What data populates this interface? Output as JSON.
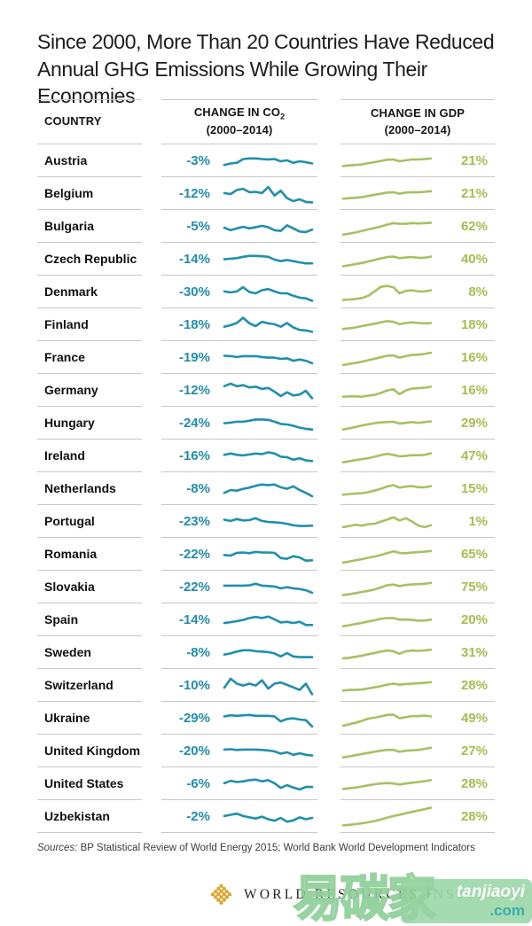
{
  "title": {
    "line1": "Since 2000, More Than 20 Countries Have Reduced",
    "line2": "Annual GHG Emissions While Growing Their Economies"
  },
  "colors": {
    "co2": "#1f8fad",
    "gdp": "#a6c161",
    "gdp_text": "#a3bf4e",
    "rule": "#c7c7c7",
    "title": "#1c1c1c",
    "logo_gold": "#e0a32a"
  },
  "header": {
    "country": "COUNTRY",
    "co2_label": "CHANGE IN CO",
    "co2_sub": "2",
    "co2_period": "(2000–2014)",
    "gdp_label": "CHANGE IN GDP",
    "gdp_period": "(2000–2014)"
  },
  "chart_data": {
    "type": "table",
    "title": "Since 2000, More Than 20 Countries Have Reduced Annual GHG Emissions While Growing Their Economies",
    "columns": [
      "COUNTRY",
      "CHANGE IN CO2 (2000–2014)",
      "CHANGE IN GDP (2000–2014)"
    ],
    "sparkline_x_span": [
      2000,
      2014
    ],
    "note": "Trend arrays are sparkline shapes normalized 0–1 (15 yearly points, 2000–2014)",
    "rows": [
      {
        "country": "Austria",
        "co2_change_pct": -3,
        "co2_label": "-3%",
        "gdp_change_pct": 21,
        "gdp_label": "21%",
        "co2_trend": [
          0.3,
          0.38,
          0.42,
          0.62,
          0.65,
          0.65,
          0.62,
          0.6,
          0.62,
          0.5,
          0.55,
          0.42,
          0.5,
          0.45,
          0.38
        ],
        "gdp_trend": [
          0.25,
          0.28,
          0.3,
          0.33,
          0.4,
          0.45,
          0.52,
          0.58,
          0.6,
          0.5,
          0.55,
          0.6,
          0.6,
          0.62,
          0.65
        ]
      },
      {
        "country": "Belgium",
        "co2_change_pct": -12,
        "co2_label": "-12%",
        "gdp_change_pct": 21,
        "gdp_label": "21%",
        "co2_trend": [
          0.55,
          0.5,
          0.72,
          0.78,
          0.6,
          0.62,
          0.55,
          0.88,
          0.42,
          0.68,
          0.28,
          0.12,
          0.22,
          0.08,
          0.05
        ],
        "gdp_trend": [
          0.25,
          0.28,
          0.3,
          0.34,
          0.4,
          0.46,
          0.52,
          0.58,
          0.6,
          0.52,
          0.58,
          0.6,
          0.6,
          0.62,
          0.65
        ]
      },
      {
        "country": "Bulgaria",
        "co2_change_pct": -5,
        "co2_label": "-5%",
        "gdp_change_pct": 62,
        "gdp_label": "62%",
        "co2_trend": [
          0.45,
          0.32,
          0.42,
          0.5,
          0.42,
          0.48,
          0.55,
          0.48,
          0.32,
          0.28,
          0.58,
          0.42,
          0.25,
          0.22,
          0.35
        ],
        "gdp_trend": [
          0.08,
          0.14,
          0.2,
          0.28,
          0.36,
          0.44,
          0.52,
          0.62,
          0.7,
          0.66,
          0.66,
          0.7,
          0.68,
          0.7,
          0.72
        ]
      },
      {
        "country": "Czech Republic",
        "co2_change_pct": -14,
        "co2_label": "-14%",
        "gdp_change_pct": 40,
        "gdp_label": "40%",
        "co2_trend": [
          0.52,
          0.55,
          0.58,
          0.65,
          0.7,
          0.7,
          0.68,
          0.65,
          0.5,
          0.42,
          0.48,
          0.42,
          0.35,
          0.3,
          0.3
        ],
        "gdp_trend": [
          0.15,
          0.2,
          0.26,
          0.32,
          0.4,
          0.48,
          0.56,
          0.64,
          0.66,
          0.58,
          0.62,
          0.64,
          0.6,
          0.6,
          0.66
        ]
      },
      {
        "country": "Denmark",
        "co2_change_pct": -30,
        "co2_label": "-30%",
        "gdp_change_pct": 8,
        "gdp_label": "8%",
        "co2_trend": [
          0.55,
          0.5,
          0.55,
          0.78,
          0.52,
          0.45,
          0.62,
          0.68,
          0.55,
          0.45,
          0.45,
          0.32,
          0.22,
          0.18,
          0.05
        ],
        "gdp_trend": [
          0.1,
          0.12,
          0.15,
          0.2,
          0.32,
          0.55,
          0.8,
          0.85,
          0.78,
          0.45,
          0.58,
          0.62,
          0.55,
          0.55,
          0.62
        ]
      },
      {
        "country": "Finland",
        "co2_change_pct": -18,
        "co2_label": "-18%",
        "gdp_change_pct": 18,
        "gdp_label": "18%",
        "co2_trend": [
          0.42,
          0.5,
          0.62,
          0.9,
          0.6,
          0.45,
          0.68,
          0.6,
          0.55,
          0.42,
          0.62,
          0.38,
          0.25,
          0.22,
          0.15
        ],
        "gdp_trend": [
          0.3,
          0.34,
          0.38,
          0.45,
          0.52,
          0.58,
          0.65,
          0.72,
          0.68,
          0.55,
          0.62,
          0.65,
          0.62,
          0.6,
          0.62
        ]
      },
      {
        "country": "France",
        "co2_change_pct": -19,
        "co2_label": "-19%",
        "gdp_change_pct": 16,
        "gdp_label": "16%",
        "co2_trend": [
          0.62,
          0.6,
          0.55,
          0.6,
          0.6,
          0.6,
          0.55,
          0.52,
          0.52,
          0.45,
          0.48,
          0.35,
          0.42,
          0.35,
          0.22
        ],
        "gdp_trend": [
          0.12,
          0.18,
          0.24,
          0.3,
          0.38,
          0.46,
          0.54,
          0.62,
          0.64,
          0.52,
          0.6,
          0.66,
          0.68,
          0.72,
          0.78
        ]
      },
      {
        "country": "Germany",
        "co2_change_pct": -12,
        "co2_label": "-12%",
        "gdp_change_pct": 16,
        "gdp_label": "16%",
        "co2_trend": [
          0.75,
          0.88,
          0.75,
          0.8,
          0.68,
          0.72,
          0.6,
          0.65,
          0.45,
          0.22,
          0.42,
          0.25,
          0.3,
          0.5,
          0.1
        ],
        "gdp_trend": [
          0.18,
          0.2,
          0.2,
          0.18,
          0.24,
          0.28,
          0.38,
          0.52,
          0.58,
          0.32,
          0.52,
          0.62,
          0.64,
          0.66,
          0.72
        ]
      },
      {
        "country": "Hungary",
        "co2_change_pct": -24,
        "co2_label": "-24%",
        "gdp_change_pct": 29,
        "gdp_label": "29%",
        "co2_trend": [
          0.52,
          0.55,
          0.6,
          0.6,
          0.65,
          0.72,
          0.72,
          0.7,
          0.6,
          0.48,
          0.45,
          0.38,
          0.28,
          0.22,
          0.18
        ],
        "gdp_trend": [
          0.18,
          0.25,
          0.32,
          0.4,
          0.46,
          0.52,
          0.56,
          0.58,
          0.6,
          0.5,
          0.54,
          0.58,
          0.54,
          0.58,
          0.62
        ]
      },
      {
        "country": "Ireland",
        "co2_change_pct": -16,
        "co2_label": "-16%",
        "gdp_change_pct": 47,
        "gdp_label": "47%",
        "co2_trend": [
          0.58,
          0.65,
          0.58,
          0.55,
          0.6,
          0.65,
          0.62,
          0.72,
          0.65,
          0.48,
          0.45,
          0.32,
          0.4,
          0.28,
          0.25
        ],
        "gdp_trend": [
          0.18,
          0.24,
          0.3,
          0.35,
          0.4,
          0.48,
          0.56,
          0.64,
          0.58,
          0.5,
          0.52,
          0.56,
          0.56,
          0.58,
          0.66
        ]
      },
      {
        "country": "Netherlands",
        "co2_change_pct": -8,
        "co2_label": "-8%",
        "gdp_change_pct": 15,
        "gdp_label": "15%",
        "co2_trend": [
          0.3,
          0.45,
          0.42,
          0.52,
          0.58,
          0.68,
          0.75,
          0.72,
          0.75,
          0.6,
          0.52,
          0.65,
          0.45,
          0.3,
          0.12
        ],
        "gdp_trend": [
          0.2,
          0.24,
          0.26,
          0.28,
          0.34,
          0.42,
          0.52,
          0.64,
          0.72,
          0.58,
          0.64,
          0.66,
          0.6,
          0.6,
          0.66
        ]
      },
      {
        "country": "Portugal",
        "co2_change_pct": -23,
        "co2_label": "-23%",
        "gdp_change_pct": 1,
        "gdp_label": "1%",
        "co2_trend": [
          0.62,
          0.55,
          0.65,
          0.58,
          0.6,
          0.7,
          0.55,
          0.5,
          0.48,
          0.45,
          0.4,
          0.32,
          0.28,
          0.28,
          0.3
        ],
        "gdp_trend": [
          0.22,
          0.28,
          0.35,
          0.3,
          0.38,
          0.4,
          0.52,
          0.62,
          0.75,
          0.58,
          0.7,
          0.52,
          0.3,
          0.22,
          0.32
        ]
      },
      {
        "country": "Romania",
        "co2_change_pct": -22,
        "co2_label": "-22%",
        "gdp_change_pct": 65,
        "gdp_label": "65%",
        "co2_trend": [
          0.48,
          0.45,
          0.6,
          0.62,
          0.58,
          0.65,
          0.62,
          0.62,
          0.6,
          0.32,
          0.28,
          0.42,
          0.35,
          0.18,
          0.2
        ],
        "gdp_trend": [
          0.08,
          0.14,
          0.2,
          0.26,
          0.34,
          0.4,
          0.48,
          0.58,
          0.68,
          0.6,
          0.58,
          0.62,
          0.64,
          0.66,
          0.7
        ]
      },
      {
        "country": "Slovakia",
        "co2_change_pct": -22,
        "co2_label": "-22%",
        "gdp_change_pct": 75,
        "gdp_label": "75%",
        "co2_trend": [
          0.6,
          0.6,
          0.6,
          0.6,
          0.62,
          0.7,
          0.6,
          0.58,
          0.55,
          0.45,
          0.52,
          0.45,
          0.42,
          0.35,
          0.22
        ],
        "gdp_trend": [
          0.1,
          0.14,
          0.2,
          0.26,
          0.32,
          0.4,
          0.5,
          0.62,
          0.66,
          0.58,
          0.64,
          0.66,
          0.68,
          0.7,
          0.75
        ]
      },
      {
        "country": "Spain",
        "co2_change_pct": -14,
        "co2_label": "-14%",
        "gdp_change_pct": 20,
        "gdp_label": "20%",
        "co2_trend": [
          0.35,
          0.4,
          0.45,
          0.52,
          0.62,
          0.68,
          0.62,
          0.7,
          0.55,
          0.38,
          0.42,
          0.35,
          0.42,
          0.25,
          0.25
        ],
        "gdp_trend": [
          0.18,
          0.24,
          0.3,
          0.36,
          0.44,
          0.5,
          0.58,
          0.62,
          0.62,
          0.54,
          0.54,
          0.52,
          0.48,
          0.48,
          0.54
        ]
      },
      {
        "country": "Sweden",
        "co2_change_pct": -8,
        "co2_label": "-8%",
        "gdp_change_pct": 31,
        "gdp_label": "31%",
        "co2_trend": [
          0.42,
          0.48,
          0.58,
          0.65,
          0.65,
          0.6,
          0.58,
          0.55,
          0.48,
          0.32,
          0.5,
          0.32,
          0.28,
          0.28,
          0.28
        ],
        "gdp_trend": [
          0.22,
          0.25,
          0.3,
          0.36,
          0.44,
          0.5,
          0.58,
          0.64,
          0.6,
          0.46,
          0.6,
          0.64,
          0.62,
          0.64,
          0.68
        ]
      },
      {
        "country": "Switzerland",
        "co2_change_pct": -10,
        "co2_label": "-10%",
        "gdp_change_pct": 28,
        "gdp_label": "28%",
        "co2_trend": [
          0.4,
          0.88,
          0.62,
          0.52,
          0.62,
          0.52,
          0.8,
          0.35,
          0.62,
          0.68,
          0.55,
          0.42,
          0.28,
          0.62,
          0.05
        ],
        "gdp_trend": [
          0.25,
          0.28,
          0.28,
          0.3,
          0.36,
          0.42,
          0.48,
          0.56,
          0.62,
          0.56,
          0.6,
          0.62,
          0.64,
          0.66,
          0.7
        ]
      },
      {
        "country": "Ukraine",
        "co2_change_pct": -29,
        "co2_label": "-29%",
        "gdp_change_pct": 49,
        "gdp_label": "49%",
        "co2_trend": [
          0.62,
          0.68,
          0.65,
          0.68,
          0.7,
          0.65,
          0.65,
          0.65,
          0.62,
          0.35,
          0.48,
          0.52,
          0.45,
          0.42,
          0.08
        ],
        "gdp_trend": [
          0.12,
          0.2,
          0.28,
          0.38,
          0.5,
          0.55,
          0.62,
          0.7,
          0.72,
          0.52,
          0.58,
          0.64,
          0.64,
          0.66,
          0.62
        ]
      },
      {
        "country": "United Kingdom",
        "co2_change_pct": -20,
        "co2_label": "-20%",
        "gdp_change_pct": 27,
        "gdp_label": "27%",
        "co2_trend": [
          0.6,
          0.62,
          0.58,
          0.6,
          0.6,
          0.6,
          0.58,
          0.55,
          0.5,
          0.38,
          0.45,
          0.32,
          0.4,
          0.32,
          0.28
        ],
        "gdp_trend": [
          0.18,
          0.24,
          0.3,
          0.36,
          0.42,
          0.48,
          0.54,
          0.58,
          0.58,
          0.48,
          0.54,
          0.56,
          0.58,
          0.64,
          0.7
        ]
      },
      {
        "country": "United States",
        "co2_change_pct": -6,
        "co2_label": "-6%",
        "gdp_change_pct": 28,
        "gdp_label": "28%",
        "co2_trend": [
          0.55,
          0.68,
          0.62,
          0.65,
          0.72,
          0.75,
          0.65,
          0.72,
          0.55,
          0.3,
          0.45,
          0.32,
          0.22,
          0.35,
          0.35
        ],
        "gdp_trend": [
          0.25,
          0.28,
          0.32,
          0.38,
          0.44,
          0.5,
          0.54,
          0.56,
          0.54,
          0.48,
          0.54,
          0.58,
          0.62,
          0.66,
          0.72
        ]
      },
      {
        "country": "Uzbekistan",
        "co2_change_pct": -2,
        "co2_label": "-2%",
        "gdp_change_pct": 28,
        "gdp_label": "28%",
        "co2_trend": [
          0.55,
          0.62,
          0.68,
          0.55,
          0.48,
          0.42,
          0.52,
          0.38,
          0.3,
          0.45,
          0.25,
          0.32,
          0.48,
          0.38,
          0.45
        ],
        "gdp_trend": [
          0.05,
          0.08,
          0.12,
          0.16,
          0.22,
          0.28,
          0.36,
          0.46,
          0.55,
          0.62,
          0.7,
          0.78,
          0.85,
          0.92,
          1.0
        ]
      }
    ]
  },
  "footer": {
    "sources_prefix": "Sources:",
    "sources_text": " BP Statistical Review of World Energy 2015; World Bank World Development Indicators"
  },
  "logo": {
    "text": "WORLD RESOURCES INSTITUTE"
  },
  "watermark": {
    "cn": "易碳家",
    "latin": "tanjiaoyi",
    "tld": ".com"
  }
}
